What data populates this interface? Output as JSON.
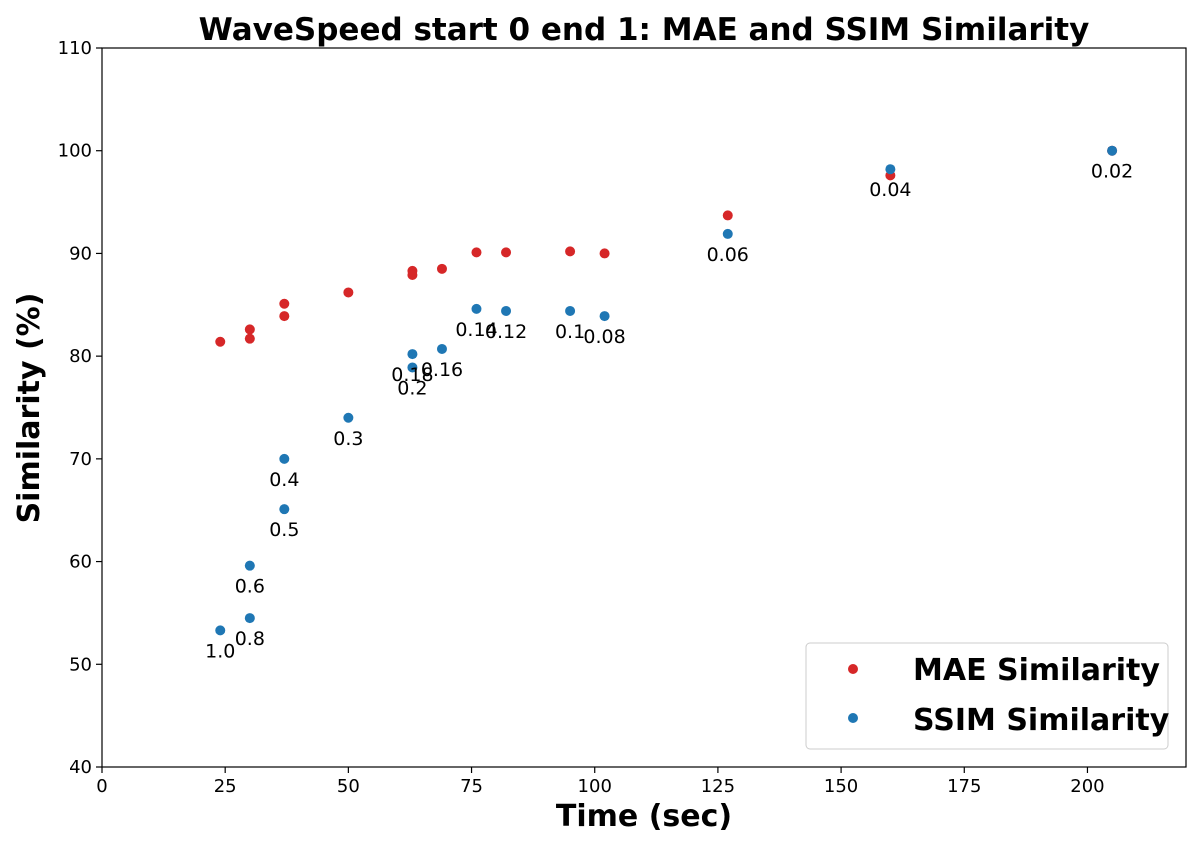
{
  "chart_data": {
    "type": "scatter",
    "title": "WaveSpeed start 0 end 1: MAE and SSIM Similarity",
    "xlabel": "Time (sec)",
    "ylabel": "Similarity (%)",
    "xlim": [
      0,
      220
    ],
    "ylim": [
      40,
      110
    ],
    "xticks": [
      "0",
      "25",
      "50",
      "75",
      "100",
      "125",
      "150",
      "175",
      "200"
    ],
    "yticks": [
      "40",
      "50",
      "60",
      "70",
      "80",
      "90",
      "100",
      "110"
    ],
    "grid": false,
    "legend_position": "bottom-right",
    "series": [
      {
        "name": "MAE Similarity",
        "color": "#d62728",
        "points": [
          {
            "x": 24,
            "y": 81.4
          },
          {
            "x": 30,
            "y": 82.6
          },
          {
            "x": 30,
            "y": 81.7
          },
          {
            "x": 37,
            "y": 85.1
          },
          {
            "x": 37,
            "y": 83.9
          },
          {
            "x": 50,
            "y": 86.2
          },
          {
            "x": 63,
            "y": 88.3
          },
          {
            "x": 63,
            "y": 87.9
          },
          {
            "x": 69,
            "y": 88.5
          },
          {
            "x": 76,
            "y": 90.1
          },
          {
            "x": 82,
            "y": 90.1
          },
          {
            "x": 95,
            "y": 90.2
          },
          {
            "x": 102,
            "y": 90.0
          },
          {
            "x": 127,
            "y": 93.7
          },
          {
            "x": 160,
            "y": 97.6
          },
          {
            "x": 205,
            "y": 100.0
          }
        ]
      },
      {
        "name": "SSIM Similarity",
        "color": "#1f77b4",
        "points": [
          {
            "x": 24,
            "y": 53.3,
            "label": "1.0"
          },
          {
            "x": 30,
            "y": 54.5,
            "label": "0.8"
          },
          {
            "x": 30,
            "y": 59.6,
            "label": "0.6"
          },
          {
            "x": 37,
            "y": 65.1,
            "label": "0.5"
          },
          {
            "x": 37,
            "y": 70.0,
            "label": "0.4"
          },
          {
            "x": 50,
            "y": 74.0,
            "label": "0.3"
          },
          {
            "x": 63,
            "y": 78.9,
            "label": "0.2"
          },
          {
            "x": 63,
            "y": 80.2,
            "label": "0.18"
          },
          {
            "x": 69,
            "y": 80.7,
            "label": "0.16"
          },
          {
            "x": 76,
            "y": 84.6,
            "label": "0.14"
          },
          {
            "x": 82,
            "y": 84.4,
            "label": "0.12"
          },
          {
            "x": 95,
            "y": 84.4,
            "label": "0.1"
          },
          {
            "x": 102,
            "y": 83.9,
            "label": "0.08"
          },
          {
            "x": 127,
            "y": 91.9,
            "label": "0.06"
          },
          {
            "x": 160,
            "y": 98.2,
            "label": "0.04"
          },
          {
            "x": 205,
            "y": 100.0,
            "label": "0.02"
          }
        ]
      }
    ]
  }
}
